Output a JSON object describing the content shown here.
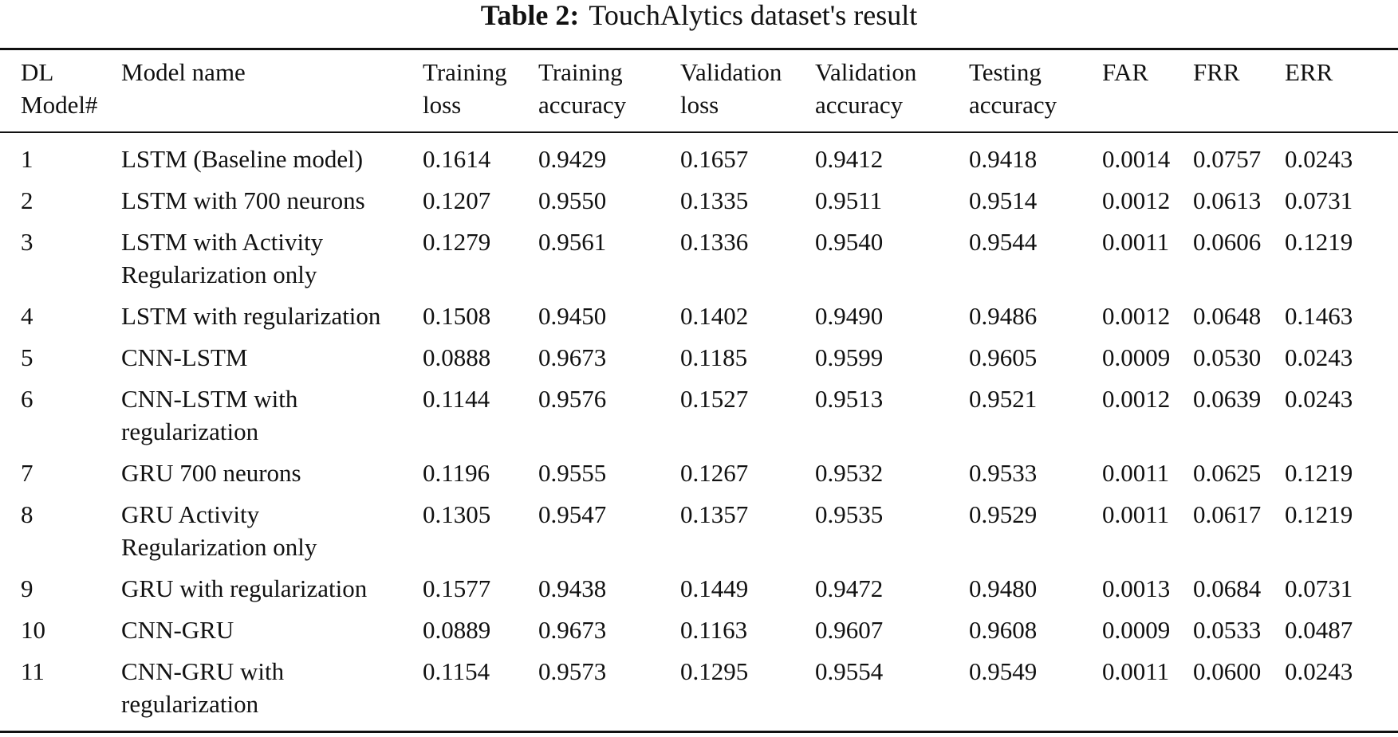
{
  "caption": {
    "label": "Table 2:",
    "text": "TouchAlytics dataset's result"
  },
  "table": {
    "headers": [
      [
        "DL",
        "Model#"
      ],
      [
        "Model name"
      ],
      [
        "Training",
        "loss"
      ],
      [
        "Training",
        "accuracy"
      ],
      [
        "Validation",
        "loss"
      ],
      [
        "Validation",
        "accuracy"
      ],
      [
        "Testing",
        "accuracy"
      ],
      [
        "FAR"
      ],
      [
        "FRR"
      ],
      [
        "ERR"
      ]
    ],
    "rows": [
      {
        "cells": [
          "1",
          [
            "LSTM (Baseline model)"
          ],
          "0.1614",
          "0.9429",
          "0.1657",
          "0.9412",
          "0.9418",
          "0.0014",
          "0.0757",
          "0.0243"
        ],
        "bold": []
      },
      {
        "cells": [
          "2",
          [
            "LSTM with 700 neurons"
          ],
          "0.1207",
          "0.9550",
          "0.1335",
          "0.9511",
          "0.9514",
          "0.0012",
          "0.0613",
          "0.0731"
        ],
        "bold": []
      },
      {
        "cells": [
          "3",
          [
            "LSTM with Activity",
            "Regularization only"
          ],
          "0.1279",
          "0.9561",
          "0.1336",
          "0.9540",
          "0.9544",
          "0.0011",
          "0.0606",
          "0.1219"
        ],
        "bold": []
      },
      {
        "cells": [
          "4",
          [
            "LSTM with regularization"
          ],
          "0.1508",
          "0.9450",
          "0.1402",
          "0.9490",
          "0.9486",
          "0.0012",
          "0.0648",
          "0.1463"
        ],
        "bold": []
      },
      {
        "cells": [
          "5",
          [
            "CNN-LSTM"
          ],
          "0.0888",
          "0.9673",
          "0.1185",
          "0.9599",
          "0.9605",
          "0.0009",
          "0.0530",
          "0.0243"
        ],
        "bold": [
          2,
          3,
          7,
          8,
          9
        ]
      },
      {
        "cells": [
          "6",
          [
            "CNN-LSTM with",
            "regularization"
          ],
          "0.1144",
          "0.9576",
          "0.1527",
          "0.9513",
          "0.9521",
          "0.0012",
          "0.0639",
          "0.0243"
        ],
        "bold": []
      },
      {
        "cells": [
          "7",
          [
            "GRU 700 neurons"
          ],
          "0.1196",
          "0.9555",
          "0.1267",
          "0.9532",
          "0.9533",
          "0.0011",
          "0.0625",
          "0.1219"
        ],
        "bold": []
      },
      {
        "cells": [
          "8",
          [
            "GRU Activity",
            "Regularization only"
          ],
          "0.1305",
          "0.9547",
          "0.1357",
          "0.9535",
          "0.9529",
          "0.0011",
          "0.0617",
          "0.1219"
        ],
        "bold": []
      },
      {
        "cells": [
          "9",
          [
            "GRU with regularization"
          ],
          "0.1577",
          "0.9438",
          "0.1449",
          "0.9472",
          "0.9480",
          "0.0013",
          "0.0684",
          "0.0731"
        ],
        "bold": []
      },
      {
        "cells": [
          "10",
          [
            "CNN-GRU"
          ],
          "0.0889",
          "0.9673",
          "0.1163",
          "0.9607",
          "0.9608",
          "0.0009",
          "0.0533",
          "0.0487"
        ],
        "bold": [
          3,
          4,
          5,
          6,
          7
        ]
      },
      {
        "cells": [
          "11",
          [
            "CNN-GRU with",
            "regularization"
          ],
          "0.1154",
          "0.9573",
          "0.1295",
          "0.9554",
          "0.9549",
          "0.0011",
          "0.0600",
          "0.0243"
        ],
        "bold": [
          9
        ]
      }
    ]
  }
}
